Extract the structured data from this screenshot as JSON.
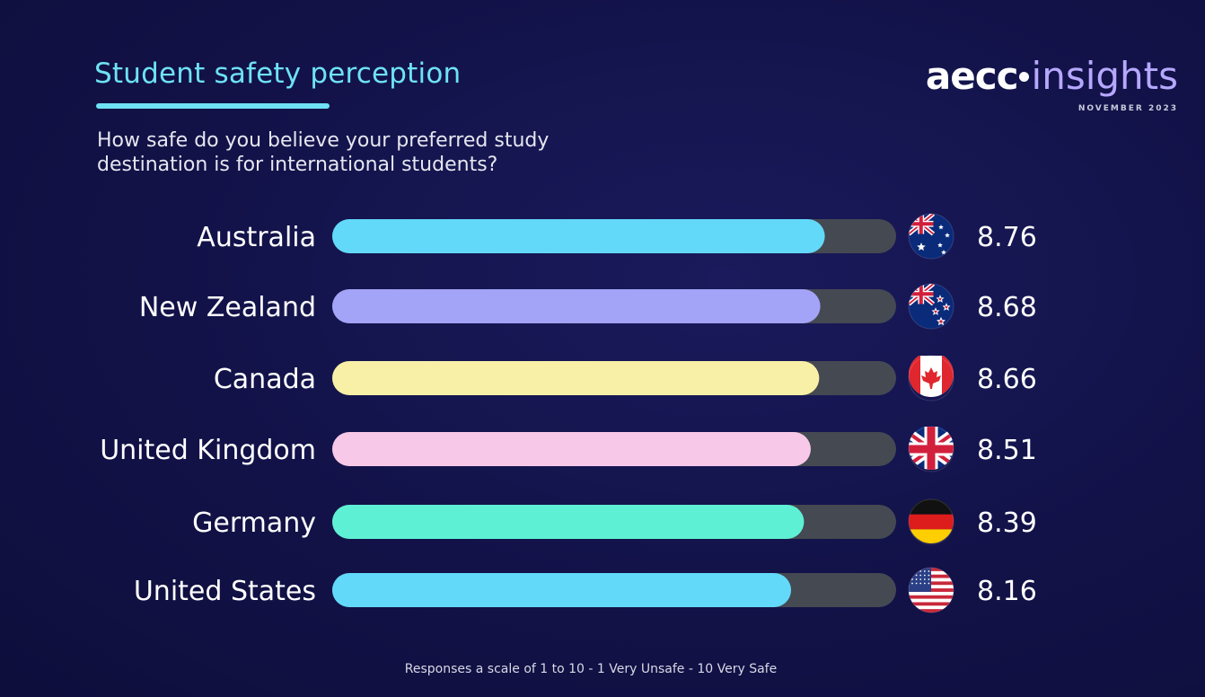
{
  "header": {
    "title": "Student safety perception",
    "subtitle": "How safe do you believe your preferred study destination is for international students?"
  },
  "logo": {
    "brand": "aecc",
    "product": "insights",
    "date": "NOVEMBER 2023"
  },
  "footnote": "Responses a scale of 1 to 10 - 1 Very Unsafe - 10 Very Safe",
  "chart_data": {
    "type": "bar",
    "orientation": "horizontal",
    "title": "Student safety perception",
    "subtitle": "How safe do you believe your preferred study destination is for international students?",
    "xlim": [
      0,
      10
    ],
    "grid": false,
    "categories": [
      "Australia",
      "New Zealand",
      "Canada",
      "United Kingdom",
      "Germany",
      "United States"
    ],
    "values": [
      8.76,
      8.68,
      8.66,
      8.51,
      8.39,
      8.16
    ],
    "value_labels": [
      "8.76",
      "8.68",
      "8.66",
      "8.51",
      "8.39",
      "8.16"
    ],
    "bar_colors": [
      "#62d9f9",
      "#a3a3f7",
      "#f8f0a6",
      "#f8c8e8",
      "#5ef0d4",
      "#62d9f9"
    ],
    "track_color": "#454952",
    "flags": [
      "australia-flag-icon",
      "new-zealand-flag-icon",
      "canada-flag-icon",
      "united-kingdom-flag-icon",
      "germany-flag-icon",
      "united-states-flag-icon"
    ]
  }
}
